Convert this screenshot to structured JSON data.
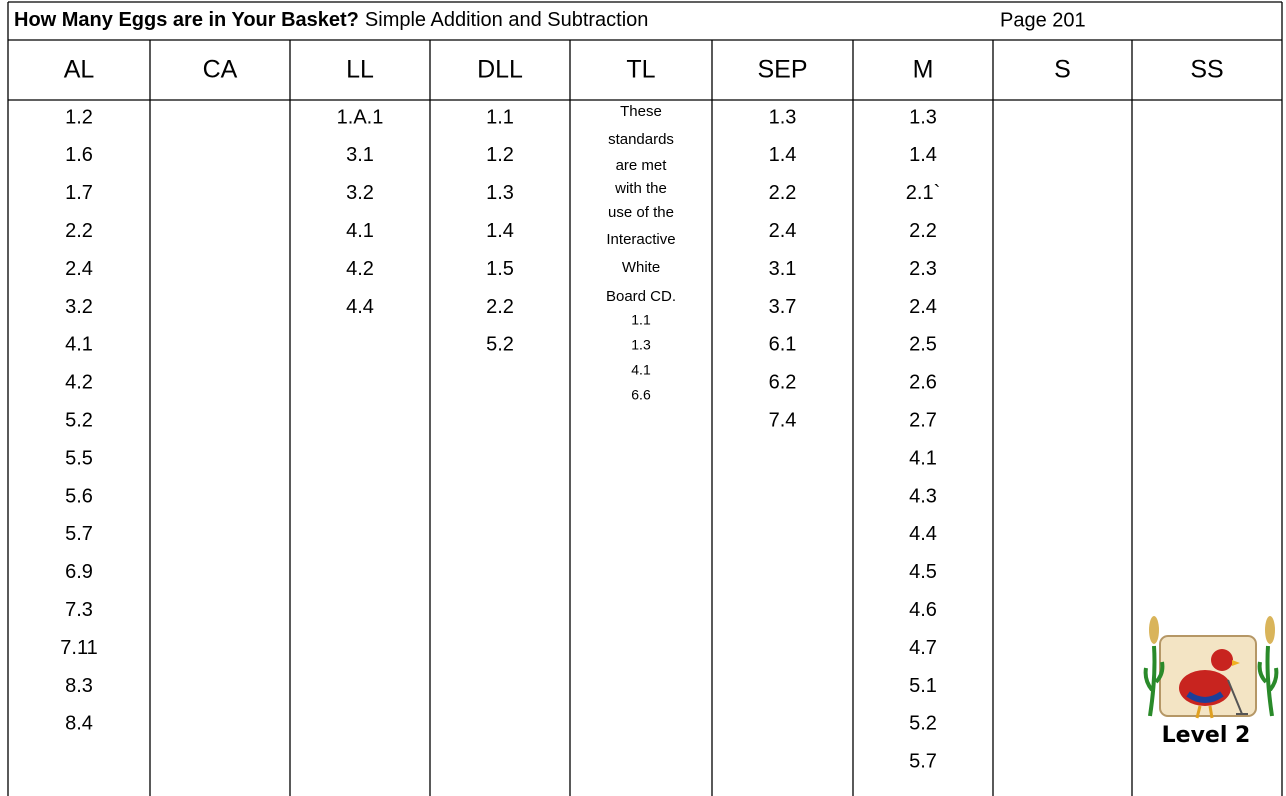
{
  "header": {
    "title_bold": "How Many Eggs are in Your Basket?",
    "title_rest": "Simple Addition and Subtraction",
    "page": "Page 201"
  },
  "columns": [
    {
      "name": "AL",
      "items": [
        "1.2",
        "1.6",
        "1.7",
        "2.2",
        "2.4",
        "3.2",
        "4.1",
        "4.2",
        "5.2",
        "5.5",
        "5.6",
        "5.7",
        "6.9",
        "7.3",
        "7.11",
        "8.3",
        "8.4"
      ]
    },
    {
      "name": "CA",
      "items": []
    },
    {
      "name": "LL",
      "items": [
        "1.A.1",
        "3.1",
        "3.2",
        "4.1",
        "4.2",
        "4.4"
      ]
    },
    {
      "name": "DLL",
      "items": [
        "1.1",
        "1.2",
        "1.3",
        "1.4",
        "1.5",
        "2.2",
        "5.2"
      ]
    },
    {
      "name": "TL",
      "note_lines": [
        "These",
        "standards",
        "are met",
        "with the",
        "use of the",
        "Interactive",
        "White",
        "Board CD."
      ],
      "items": [
        "1.1",
        "1.3",
        "4.1",
        "6.6"
      ]
    },
    {
      "name": "SEP",
      "items": [
        "1.3",
        "1.4",
        "2.2",
        "2.4",
        "3.1",
        "3.7",
        "6.1",
        "6.2",
        "7.4"
      ]
    },
    {
      "name": "M",
      "items": [
        "1.3",
        "1.4",
        "2.1`",
        "2.2",
        "2.3",
        "2.4",
        "2.5",
        "2.6",
        "2.7",
        "4.1",
        "4.3",
        "4.4",
        "4.5",
        "4.6",
        "4.7",
        "5.1",
        "5.2",
        "5.7"
      ]
    },
    {
      "name": "S",
      "items": []
    },
    {
      "name": "SS",
      "items": []
    }
  ],
  "badge": {
    "label": "Level 2"
  }
}
